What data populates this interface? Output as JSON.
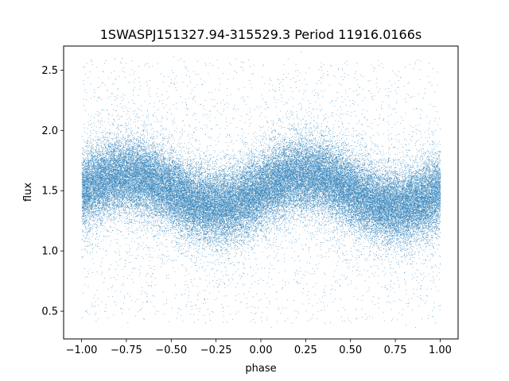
{
  "chart_data": {
    "type": "scatter",
    "title": "1SWASPJ151327.94-315529.3 Period 11916.0166s",
    "xlabel": "phase",
    "ylabel": "flux",
    "xlim": [
      -1.1,
      1.1
    ],
    "ylim": [
      0.27,
      2.7
    ],
    "xticks": [
      -1.0,
      -0.75,
      -0.5,
      -0.25,
      0.0,
      0.25,
      0.5,
      0.75,
      1.0
    ],
    "xtick_labels": [
      "−1.00",
      "−0.75",
      "−0.50",
      "−0.25",
      "0.00",
      "0.25",
      "0.50",
      "0.75",
      "1.00"
    ],
    "yticks": [
      0.5,
      1.0,
      1.5,
      2.0,
      2.5
    ],
    "ytick_labels": [
      "0.5",
      "1.0",
      "1.5",
      "2.0",
      "2.5"
    ],
    "grid": false,
    "marker_color": "#1f77b4",
    "series": [
      {
        "phase_range": [
          -1.0,
          1.0
        ],
        "mean_flux": 1.5,
        "amplitude": 0.13,
        "peak_phases": [
          -0.75,
          0.25
        ],
        "trough_phases": [
          -0.25,
          0.75
        ],
        "flux_scatter": 0.15,
        "approx_point_count": 60000,
        "outlier_range": [
          0.4,
          2.6
        ]
      }
    ]
  }
}
